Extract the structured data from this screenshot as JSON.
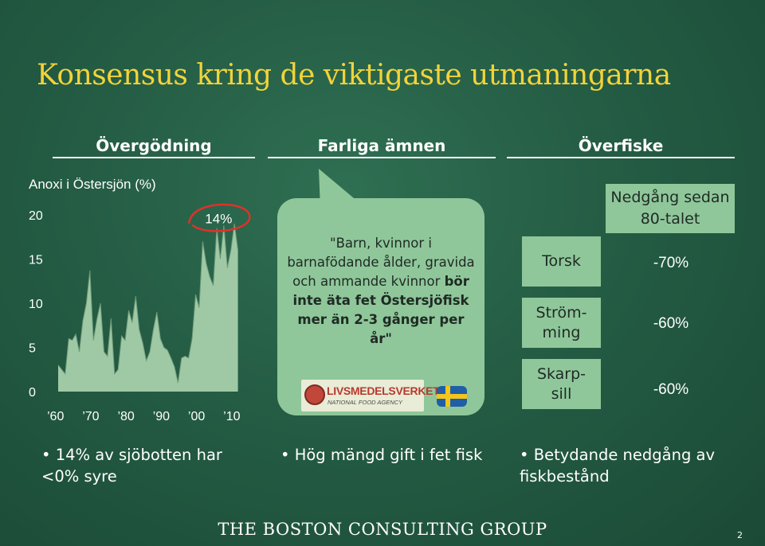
{
  "title": "Konsensus kring de viktigaste utmaningarna",
  "columns": {
    "c1": {
      "heading": "Övergödning"
    },
    "c2": {
      "heading": "Farliga ämnen"
    },
    "c3": {
      "heading": "Överfiske"
    }
  },
  "chart_caption": "Anoxi i Östersjön (%)",
  "chart_data": {
    "type": "area",
    "title": "Anoxi i Östersjön (%)",
    "xlabel": "",
    "ylabel": "",
    "x_ticks": [
      "’60",
      "’70",
      "’80",
      "’90",
      "’00",
      "’10"
    ],
    "x_tick_values": [
      1960,
      1970,
      1980,
      1990,
      2000,
      2010
    ],
    "y_ticks": [
      "0",
      "5",
      "10",
      "15",
      "20"
    ],
    "ylim": [
      0,
      20
    ],
    "xlim": [
      1960,
      2012
    ],
    "grid": false,
    "annotation": {
      "label": "14%",
      "x": 2008,
      "y": 18.5
    },
    "x": [
      1960,
      1961,
      1962,
      1963,
      1964,
      1965,
      1966,
      1967,
      1968,
      1969,
      1970,
      1971,
      1972,
      1973,
      1974,
      1975,
      1976,
      1977,
      1978,
      1979,
      1980,
      1981,
      1982,
      1983,
      1984,
      1985,
      1986,
      1987,
      1988,
      1989,
      1990,
      1991,
      1992,
      1993,
      1994,
      1995,
      1996,
      1997,
      1998,
      1999,
      2000,
      2001,
      2002,
      2003,
      2004,
      2005,
      2006,
      2007,
      2008,
      2009,
      2010,
      2011
    ],
    "y": [
      3.0,
      2.5,
      2.0,
      6.0,
      5.8,
      6.5,
      4.5,
      8.0,
      10.0,
      13.7,
      5.8,
      8.2,
      10.0,
      4.5,
      4.0,
      8.3,
      2.0,
      2.5,
      6.3,
      5.8,
      9.2,
      7.8,
      10.8,
      7.0,
      5.5,
      3.5,
      4.5,
      7.0,
      9.0,
      6.0,
      5.0,
      4.7,
      3.8,
      2.8,
      1.0,
      3.8,
      4.0,
      3.8,
      6.0,
      11.0,
      9.5,
      17.0,
      14.5,
      13.0,
      12.0,
      18.5,
      15.0,
      18.8,
      14.0,
      16.0,
      19.0,
      16.0
    ]
  },
  "quote": {
    "part1": "\"Barn, kvinnor i barnafödande ålder, gravida och ammande kvinnor ",
    "bold": "bör inte äta fet Östersjöfisk mer än 2-3 gånger per år\""
  },
  "logo": {
    "name": "LIVSMEDELSVERKET",
    "sub": "NATIONAL FOOD AGENCY"
  },
  "fish": [
    {
      "name": "Torsk",
      "decline": "-70%"
    },
    {
      "name": "Ström-\nming",
      "decline": "-60%"
    },
    {
      "name": "Skarp-\nsill",
      "decline": "-60%"
    }
  ],
  "decline_header": "Nedgång sedan 80-talet",
  "bullets": [
    "14% av sjöbotten har <0% syre",
    "Hög mängd gift i fet fisk",
    "Betydande nedgång av fiskbestånd"
  ],
  "bullet_symbol": "•",
  "footer": {
    "brand": "THE BOSTON CONSULTING GROUP",
    "page": "2"
  },
  "colors": {
    "title": "#f2d33a",
    "panel": "#8fc79a",
    "chart_fill": "#9fc9a4",
    "chart_line": "#6f9a78",
    "circle": "#e0312b",
    "background": "#245c44"
  }
}
